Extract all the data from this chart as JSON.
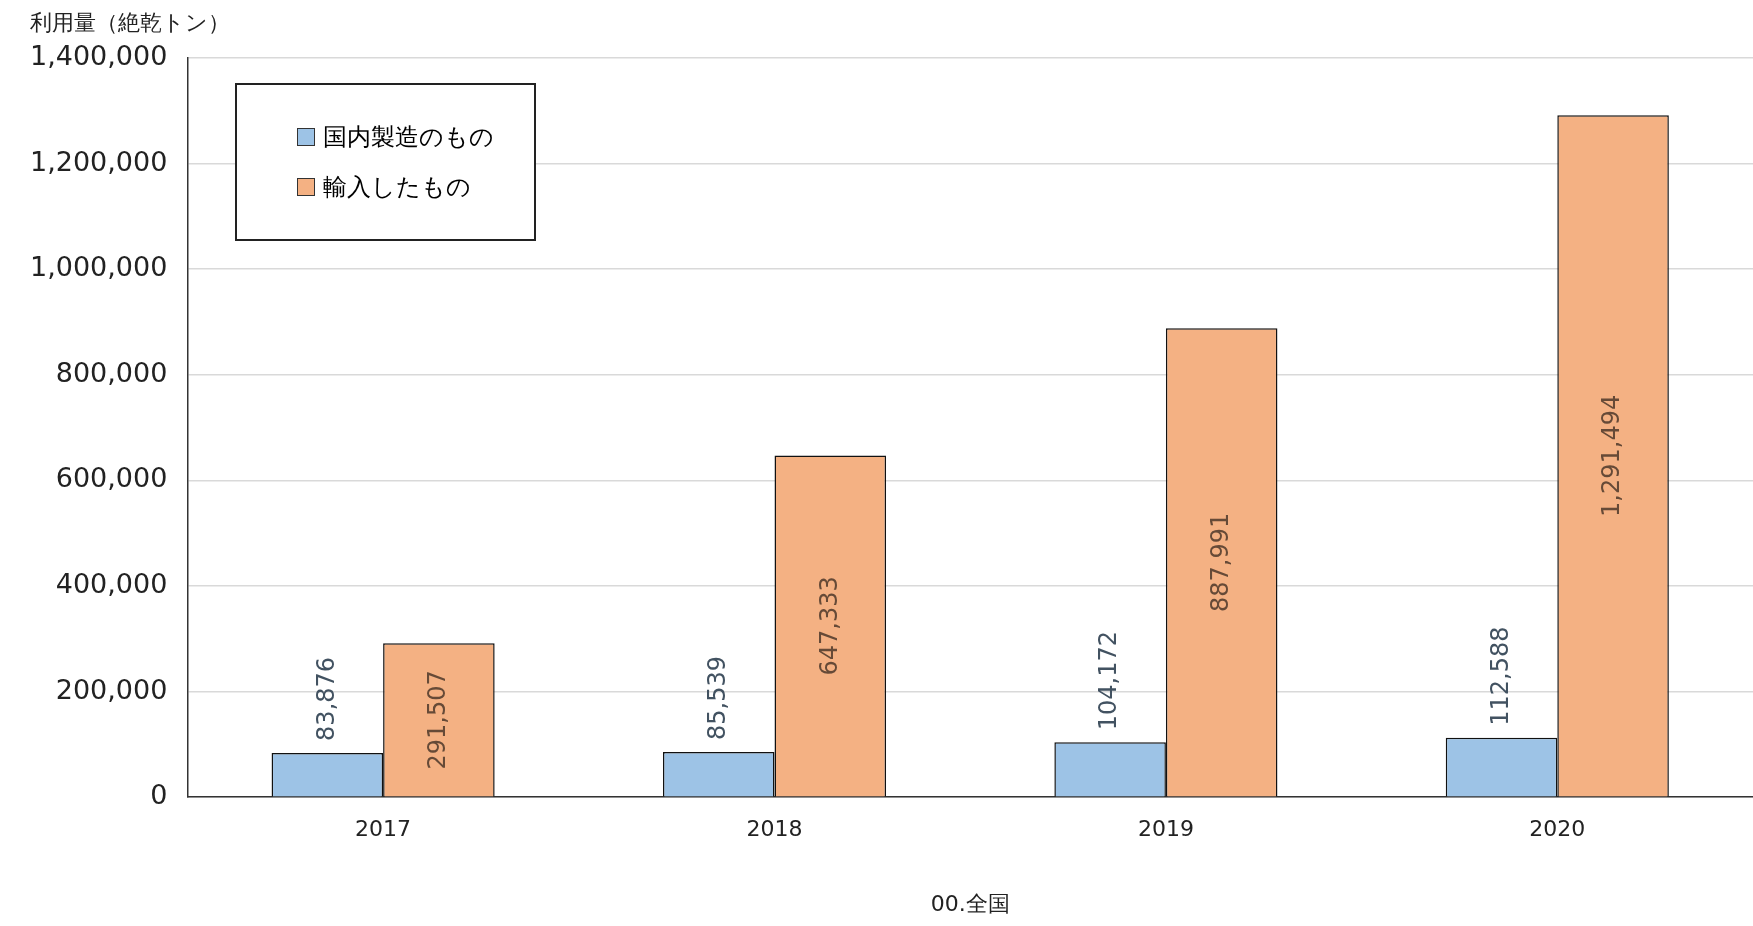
{
  "chart_data": {
    "type": "bar",
    "ylabel": "利用量（絶乾トン）",
    "xlabel": "00.全国",
    "categories": [
      "2017",
      "2018",
      "2019",
      "2020"
    ],
    "series": [
      {
        "name": "国内製造のもの",
        "color": "#9dc3e6",
        "values": [
          83876,
          85539,
          104172,
          112588
        ],
        "value_labels": [
          "83,876",
          "85,539",
          "104,172",
          "112,588"
        ]
      },
      {
        "name": "輸入したもの",
        "color": "#f4b183",
        "values": [
          291507,
          647333,
          887991,
          1291494
        ],
        "value_labels": [
          "291,507",
          "647,333",
          "887,991",
          "1,291,494"
        ]
      }
    ],
    "ylim": [
      0,
      1400000
    ],
    "yticks": [
      0,
      {
        "value": 200000,
        "label": "200,000"
      },
      {
        "value": 400000,
        "label": "400,000"
      },
      {
        "value": 600000,
        "label": "600,000"
      },
      {
        "value": 800000,
        "label": "800,000"
      },
      {
        "value": 1000000,
        "label": "1,000,000"
      },
      {
        "value": 1200000,
        "label": "1,200,000"
      },
      {
        "value": 1400000,
        "label": "1,400,000"
      }
    ],
    "grid": "y",
    "legend": "top left"
  }
}
